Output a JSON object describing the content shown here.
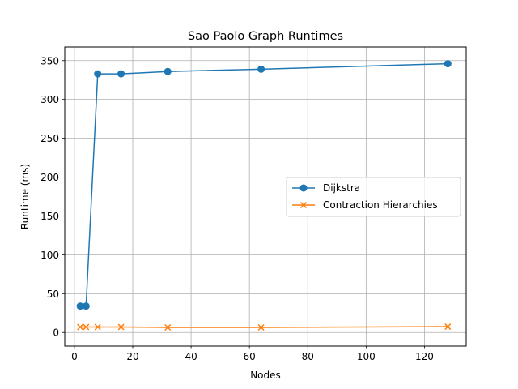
{
  "chart_data": {
    "type": "line",
    "title": "Sao Paolo Graph Runtimes",
    "xlabel": "Nodes",
    "ylabel": "Runtime (ms)",
    "xlim": [
      -3.3,
      134.3
    ],
    "ylim": [
      -17.5,
      367.5
    ],
    "xticks": [
      0,
      20,
      40,
      60,
      80,
      100,
      120
    ],
    "yticks": [
      0,
      50,
      100,
      150,
      200,
      250,
      300,
      350
    ],
    "grid": true,
    "legend_position": "center-right",
    "series": [
      {
        "name": "Dijkstra",
        "color": "#1f77b4",
        "marker": "circle",
        "x": [
          2,
          4,
          8,
          16,
          32,
          64,
          128
        ],
        "y": [
          34,
          34,
          333,
          333,
          336,
          339,
          346
        ]
      },
      {
        "name": "Contraction Hierarchies",
        "color": "#ff7f0e",
        "marker": "x",
        "x": [
          2,
          4,
          8,
          16,
          32,
          64,
          128
        ],
        "y": [
          7,
          7,
          7,
          7,
          6.5,
          6.5,
          7.5
        ]
      }
    ]
  }
}
